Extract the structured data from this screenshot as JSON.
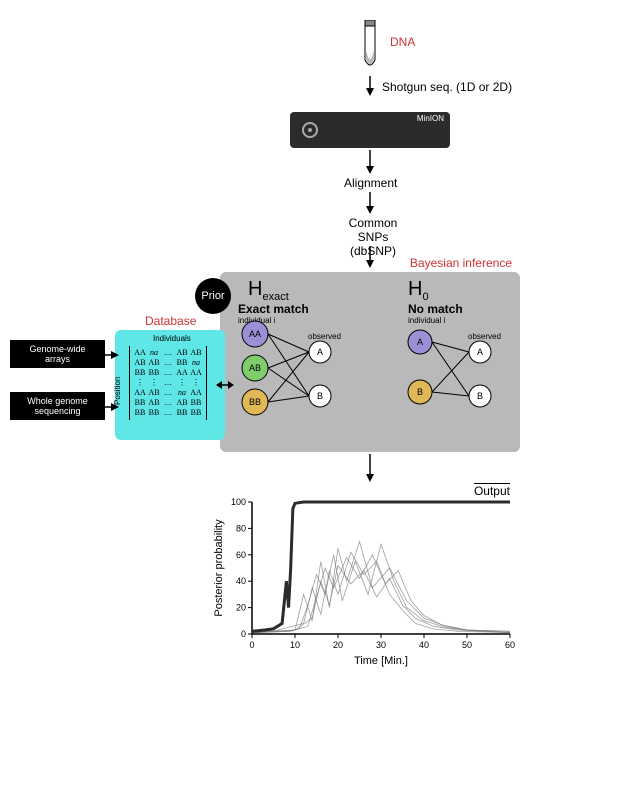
{
  "labels": {
    "dna": "DNA",
    "shotgun": "Shotgun seq. (1D or 2D)",
    "minion": "MinION",
    "alignment": "Alignment",
    "snps_l1": "Common SNPs",
    "snps_l2": "(dbSNP)",
    "prior": "Prior",
    "bayesian": "Bayesian inference",
    "database": "Database",
    "gwa": "Genome-wide\narrays",
    "wgs": "Whole genome\nsequencing",
    "individuals": "Individuals",
    "position": "Position",
    "h_exact_sub": "exact",
    "h_exact_title": "Exact match",
    "h0_sub": "0",
    "h0_title": "No match",
    "individual_i": "individual i",
    "observed": "observed",
    "output_title": "Output",
    "xlabel": "Time [Min.]",
    "ylabel": "Posterior probability"
  },
  "nodes": {
    "exact": [
      {
        "t": "AA",
        "fill": "#9b8fd6"
      },
      {
        "t": "AB",
        "fill": "#7ecf6b"
      },
      {
        "t": "BB",
        "fill": "#e0b857"
      }
    ],
    "null_model": [
      {
        "t": "A",
        "fill": "#9b8fd6"
      },
      {
        "t": "B",
        "fill": "#e0b857"
      }
    ],
    "obs": [
      "A",
      "B"
    ]
  },
  "matrix": [
    [
      "AA",
      "na",
      "…",
      "AB",
      "AB"
    ],
    [
      "AB",
      "AB",
      "…",
      "BB",
      "na"
    ],
    [
      "BB",
      "BB",
      "…",
      "AA",
      "AA"
    ],
    [
      "⋮",
      "⋮",
      "…",
      "⋮",
      "⋮"
    ],
    [
      "AA",
      "AB",
      "…",
      "na",
      "AA"
    ],
    [
      "BB",
      "AB",
      "…",
      "AB",
      "BB"
    ],
    [
      "BB",
      "BB",
      "…",
      "BB",
      "BB"
    ]
  ],
  "chart": {
    "xlim": [
      0,
      60
    ],
    "ylim": [
      0,
      100
    ],
    "xticks": [
      0,
      10,
      20,
      30,
      40,
      50,
      60
    ],
    "yticks": [
      0,
      20,
      40,
      60,
      80,
      100
    ],
    "thick_trace": [
      [
        0,
        2
      ],
      [
        3,
        3
      ],
      [
        5,
        4
      ],
      [
        7,
        8
      ],
      [
        8,
        40
      ],
      [
        8.5,
        20
      ],
      [
        9,
        50
      ],
      [
        9.5,
        95
      ],
      [
        10,
        99
      ],
      [
        12,
        100
      ],
      [
        60,
        100
      ]
    ],
    "noise_traces": [
      [
        [
          0,
          1
        ],
        [
          5,
          2
        ],
        [
          10,
          3
        ],
        [
          12,
          30
        ],
        [
          14,
          10
        ],
        [
          16,
          55
        ],
        [
          18,
          20
        ],
        [
          20,
          65
        ],
        [
          22,
          40
        ],
        [
          25,
          70
        ],
        [
          28,
          35
        ],
        [
          32,
          50
        ],
        [
          36,
          25
        ],
        [
          40,
          12
        ],
        [
          45,
          6
        ],
        [
          50,
          3
        ],
        [
          55,
          2
        ],
        [
          60,
          1
        ]
      ],
      [
        [
          0,
          1
        ],
        [
          8,
          2
        ],
        [
          11,
          4
        ],
        [
          13,
          22
        ],
        [
          15,
          45
        ],
        [
          17,
          30
        ],
        [
          19,
          60
        ],
        [
          21,
          25
        ],
        [
          24,
          55
        ],
        [
          27,
          30
        ],
        [
          30,
          68
        ],
        [
          33,
          40
        ],
        [
          36,
          20
        ],
        [
          40,
          10
        ],
        [
          45,
          5
        ],
        [
          50,
          3
        ],
        [
          60,
          2
        ]
      ],
      [
        [
          0,
          1
        ],
        [
          6,
          3
        ],
        [
          12,
          8
        ],
        [
          14,
          35
        ],
        [
          16,
          15
        ],
        [
          18,
          48
        ],
        [
          20,
          30
        ],
        [
          23,
          62
        ],
        [
          26,
          45
        ],
        [
          29,
          55
        ],
        [
          32,
          30
        ],
        [
          35,
          18
        ],
        [
          38,
          8
        ],
        [
          42,
          4
        ],
        [
          48,
          2
        ],
        [
          60,
          1
        ]
      ],
      [
        [
          0,
          1
        ],
        [
          9,
          2
        ],
        [
          13,
          6
        ],
        [
          15,
          28
        ],
        [
          17,
          50
        ],
        [
          19,
          35
        ],
        [
          22,
          58
        ],
        [
          25,
          42
        ],
        [
          28,
          60
        ],
        [
          31,
          38
        ],
        [
          34,
          48
        ],
        [
          37,
          25
        ],
        [
          40,
          14
        ],
        [
          44,
          7
        ],
        [
          50,
          3
        ],
        [
          60,
          2
        ]
      ],
      [
        [
          0,
          1
        ],
        [
          10,
          3
        ],
        [
          14,
          12
        ],
        [
          16,
          40
        ],
        [
          18,
          22
        ],
        [
          20,
          52
        ],
        [
          23,
          38
        ],
        [
          26,
          48
        ],
        [
          29,
          28
        ],
        [
          32,
          42
        ],
        [
          35,
          22
        ],
        [
          38,
          12
        ],
        [
          42,
          6
        ],
        [
          48,
          3
        ],
        [
          60,
          1
        ]
      ]
    ],
    "thick_color": "#2b2b2b",
    "noise_color": "#777777",
    "axis_color": "#000000",
    "bg": "#ffffff"
  },
  "colors": {
    "minion_body": "#2b2b2b",
    "minion_text": "#ffffff",
    "bayes_bg": "#b9b9b9",
    "db_bg": "#5fe6e6",
    "input_box": "#000000",
    "input_text": "#ffffff",
    "prior_bg": "#000000",
    "prior_text": "#ffffff",
    "arrow": "#000000",
    "red": "#cc3333",
    "text": "#000000"
  }
}
